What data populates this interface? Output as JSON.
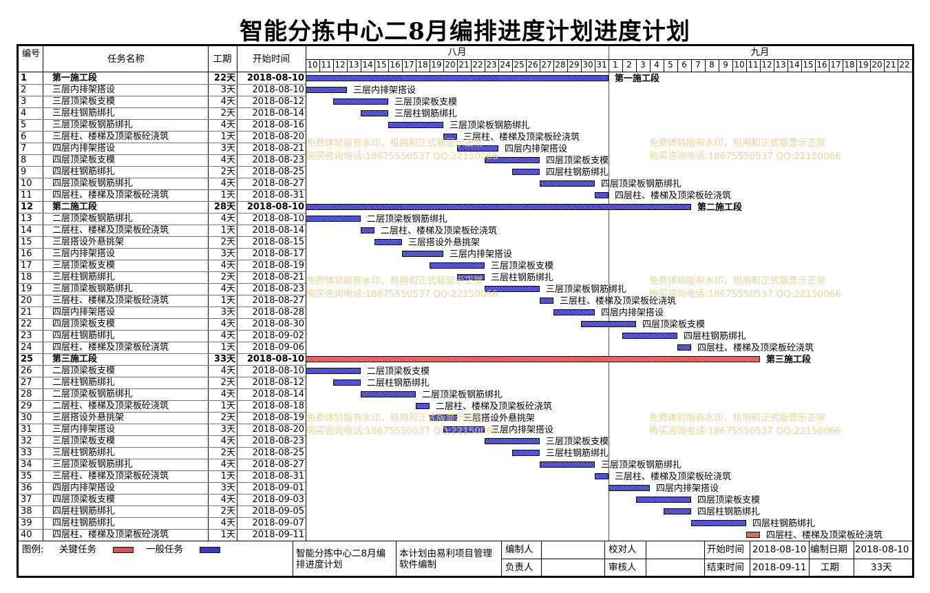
{
  "title": "智能分拣中心二8月编排进度计划进度计划",
  "columns": {
    "no": "编号",
    "name": "任务名称",
    "duration": "工期",
    "start": "开始时间"
  },
  "months": [
    {
      "label": "八月"
    },
    {
      "label": "九月"
    }
  ],
  "days": [
    "10",
    "11",
    "12",
    "13",
    "14",
    "15",
    "16",
    "17",
    "18",
    "19",
    "20",
    "21",
    "22",
    "23",
    "24",
    "25",
    "26",
    "27",
    "28",
    "29",
    "30",
    "31",
    "1",
    "2",
    "3",
    "4",
    "5",
    "6",
    "7",
    "8",
    "9",
    "10",
    "11",
    "12",
    "13",
    "14",
    "15",
    "16",
    "17",
    "18",
    "19",
    "20",
    "21",
    "22"
  ],
  "tasks": [
    {
      "no": "1",
      "name": "第一施工段",
      "duration": "22天",
      "start": "2018-08-10",
      "summary": true,
      "critical": false,
      "s": 0,
      "d": 22
    },
    {
      "no": "2",
      "name": "三层内排架搭设",
      "duration": "3天",
      "start": "2018-08-10",
      "s": 0,
      "d": 3
    },
    {
      "no": "3",
      "name": "三层顶梁板支模",
      "duration": "4天",
      "start": "2018-08-12",
      "s": 2,
      "d": 4
    },
    {
      "no": "4",
      "name": "三层柱钢筋绑扎",
      "duration": "2天",
      "start": "2018-08-14",
      "s": 4,
      "d": 2
    },
    {
      "no": "5",
      "name": "三层顶梁板钢筋绑扎",
      "duration": "4天",
      "start": "2018-08-16",
      "s": 6,
      "d": 4
    },
    {
      "no": "6",
      "name": "三层柱、楼梯及顶梁板砼浇筑",
      "duration": "1天",
      "start": "2018-08-20",
      "s": 10,
      "d": 1
    },
    {
      "no": "7",
      "name": "四层内排架搭设",
      "duration": "3天",
      "start": "2018-08-21",
      "s": 11,
      "d": 3
    },
    {
      "no": "8",
      "name": "四层顶梁板支模",
      "duration": "4天",
      "start": "2018-08-23",
      "s": 13,
      "d": 4
    },
    {
      "no": "9",
      "name": "四层柱钢筋绑扎",
      "duration": "2天",
      "start": "2018-08-25",
      "s": 15,
      "d": 2
    },
    {
      "no": "10",
      "name": "四层顶梁板钢筋绑扎",
      "duration": "4天",
      "start": "2018-08-27",
      "s": 17,
      "d": 4
    },
    {
      "no": "11",
      "name": "四层柱、楼梯及顶梁板砼浇筑",
      "duration": "1天",
      "start": "2018-08-31",
      "s": 21,
      "d": 1
    },
    {
      "no": "12",
      "name": "第二施工段",
      "duration": "28天",
      "start": "2018-08-10",
      "summary": true,
      "s": 0,
      "d": 28
    },
    {
      "no": "13",
      "name": "二层顶梁板钢筋绑扎",
      "duration": "4天",
      "start": "2018-08-10",
      "s": 0,
      "d": 4
    },
    {
      "no": "14",
      "name": "二层柱、楼梯及顶梁板砼浇筑",
      "duration": "1天",
      "start": "2018-08-14",
      "s": 4,
      "d": 1
    },
    {
      "no": "15",
      "name": "三层搭设外悬挑架",
      "duration": "2天",
      "start": "2018-08-15",
      "s": 5,
      "d": 2
    },
    {
      "no": "16",
      "name": "三层内排架搭设",
      "duration": "3天",
      "start": "2018-08-17",
      "s": 7,
      "d": 3
    },
    {
      "no": "17",
      "name": "三层顶梁板支模",
      "duration": "4天",
      "start": "2018-08-19",
      "s": 9,
      "d": 4
    },
    {
      "no": "18",
      "name": "三层柱钢筋绑扎",
      "duration": "2天",
      "start": "2018-08-21",
      "s": 11,
      "d": 2
    },
    {
      "no": "19",
      "name": "三层顶梁板钢筋绑扎",
      "duration": "4天",
      "start": "2018-08-23",
      "s": 13,
      "d": 4
    },
    {
      "no": "20",
      "name": "三层柱、楼梯及顶梁板砼浇筑",
      "duration": "1天",
      "start": "2018-08-27",
      "s": 17,
      "d": 1
    },
    {
      "no": "21",
      "name": "四层内排架搭设",
      "duration": "3天",
      "start": "2018-08-28",
      "s": 18,
      "d": 3
    },
    {
      "no": "22",
      "name": "四层顶梁板支模",
      "duration": "4天",
      "start": "2018-08-30",
      "s": 20,
      "d": 4
    },
    {
      "no": "23",
      "name": "四层柱钢筋绑扎",
      "duration": "4天",
      "start": "2018-09-02",
      "s": 23,
      "d": 4
    },
    {
      "no": "24",
      "name": "四层柱、楼梯及顶梁板砼浇筑",
      "duration": "1天",
      "start": "2018-09-06",
      "s": 27,
      "d": 1
    },
    {
      "no": "25",
      "name": "第三施工段",
      "duration": "33天",
      "start": "2018-08-10",
      "summary": true,
      "critical": true,
      "s": 0,
      "d": 33
    },
    {
      "no": "26",
      "name": "二层顶梁板支模",
      "duration": "4天",
      "start": "2018-08-10",
      "s": 0,
      "d": 4
    },
    {
      "no": "27",
      "name": "二层柱钢筋绑扎",
      "duration": "2天",
      "start": "2018-08-12",
      "s": 2,
      "d": 2
    },
    {
      "no": "28",
      "name": "二层顶梁板钢筋绑扎",
      "duration": "4天",
      "start": "2018-08-14",
      "s": 4,
      "d": 4
    },
    {
      "no": "29",
      "name": "二层柱、楼梯及顶梁板砼浇筑",
      "duration": "1天",
      "start": "2018-08-18",
      "s": 8,
      "d": 1
    },
    {
      "no": "30",
      "name": "三层搭设外悬挑架",
      "duration": "2天",
      "start": "2018-08-19",
      "s": 9,
      "d": 2
    },
    {
      "no": "31",
      "name": "三层内排架搭设",
      "duration": "3天",
      "start": "2018-08-20",
      "s": 10,
      "d": 3
    },
    {
      "no": "32",
      "name": "三层顶梁板支模",
      "duration": "4天",
      "start": "2018-08-23",
      "s": 13,
      "d": 4
    },
    {
      "no": "33",
      "name": "三层柱钢筋绑扎",
      "duration": "2天",
      "start": "2018-08-25",
      "s": 15,
      "d": 2
    },
    {
      "no": "34",
      "name": "三层顶梁板钢筋绑扎",
      "duration": "4天",
      "start": "2018-08-27",
      "s": 17,
      "d": 4
    },
    {
      "no": "35",
      "name": "三层柱、楼梯及顶梁板砼浇筑",
      "duration": "1天",
      "start": "2018-08-31",
      "s": 21,
      "d": 1
    },
    {
      "no": "36",
      "name": "四层内排架搭设",
      "duration": "3天",
      "start": "2018-09-01",
      "s": 22,
      "d": 3
    },
    {
      "no": "37",
      "name": "四层顶梁板支模",
      "duration": "4天",
      "start": "2018-09-03",
      "s": 24,
      "d": 4
    },
    {
      "no": "38",
      "name": "四层柱钢筋绑扎",
      "duration": "2天",
      "start": "2018-09-05",
      "s": 26,
      "d": 2
    },
    {
      "no": "39",
      "name": "四层柱钢筋绑扎",
      "duration": "4天",
      "start": "2018-09-07",
      "s": 28,
      "d": 4
    },
    {
      "no": "40",
      "name": "四层柱、楼梯及顶梁板砼浇筑",
      "duration": "1天",
      "start": "2018-09-11",
      "s": 32,
      "d": 1,
      "critical": true
    }
  ],
  "watermark": {
    "line1": "免费体验版有水印，租用和正式版显示正常",
    "line2": "购买咨询电话:18675550537 QQ:22150066"
  },
  "footer": {
    "legend_label": "图例:",
    "legend_critical": "关键任务",
    "legend_normal": "一般任务",
    "project_name": "智能分拣中心二8月编排进度计划",
    "note": "本计划由易利项目管理软件编制",
    "compiler_label": "编制人",
    "responsible_label": "负责人",
    "proofreader_label": "校对人",
    "reviewer_label": "审核人",
    "start_label": "开始时间",
    "start_value": "2018-08-10",
    "end_label": "结束时间",
    "end_value": "2018-09-11",
    "compile_date_label": "编制日期",
    "compile_date_value": "2018-08-10",
    "duration_label": "工期",
    "duration_value": "33天"
  },
  "colors": {
    "normal_bar": "#3a3acc",
    "critical_bar": "#e05050",
    "watermark": "#e7d28a"
  }
}
